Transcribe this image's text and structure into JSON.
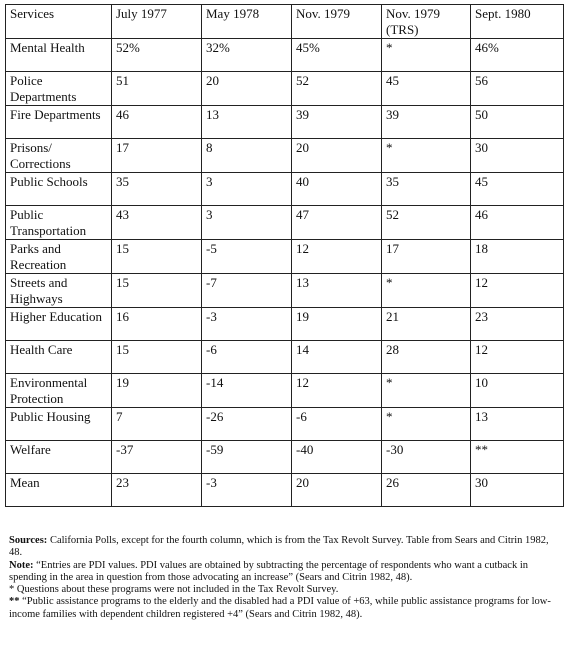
{
  "table": {
    "header": [
      "Services",
      "July 1977",
      "May 1978",
      "Nov. 1979",
      "Nov. 1979 (TRS)",
      "Sept. 1980"
    ],
    "rows": [
      [
        "Mental Health",
        "52%",
        "32%",
        "45%",
        "*",
        "46%"
      ],
      [
        "Police Departments",
        "51",
        "20",
        "52",
        "45",
        "56"
      ],
      [
        "Fire Departments",
        "46",
        "13",
        "39",
        "39",
        "50"
      ],
      [
        "Prisons/ Corrections",
        "17",
        "8",
        "20",
        "*",
        "30"
      ],
      [
        "Public Schools",
        "35",
        "3",
        "40",
        "35",
        "45"
      ],
      [
        "Public Transportation",
        "43",
        "3",
        "47",
        "52",
        "46"
      ],
      [
        "Parks and Recreation",
        "15",
        "-5",
        "12",
        "17",
        "18"
      ],
      [
        "Streets and Highways",
        "15",
        "-7",
        "13",
        "*",
        "12"
      ],
      [
        "Higher Education",
        "16",
        "-3",
        "19",
        "21",
        "23"
      ],
      [
        "Health Care",
        "15",
        "-6",
        "14",
        "28",
        "12"
      ],
      [
        "Environmental Protection",
        "19",
        "-14",
        "12",
        "*",
        "10"
      ],
      [
        "Public Housing",
        "7",
        "-26",
        "-6",
        "*",
        "13"
      ],
      [
        "Welfare",
        "-37",
        "-59",
        "-40",
        "-30",
        "**"
      ],
      [
        "Mean",
        "23",
        "-3",
        "20",
        "26",
        "30"
      ]
    ]
  },
  "notes": [
    {
      "label": "Sources:",
      "text": "California Polls, except for the fourth column, which is from the Tax Revolt Survey. Table from Sears and Citrin 1982, 48."
    },
    {
      "label": "Note:",
      "text": "“Entries are PDI values. PDI values are obtained by subtracting the percentage of respondents who want a cutback in spending in the area in question from those advocating an increase” (Sears and Citrin 1982, 48)."
    },
    {
      "label": "*",
      "text": "Questions about these programs were not included in the Tax Revolt Survey."
    },
    {
      "label": "**",
      "text": "“Public assistance programs to the elderly and the disabled had a PDI value of +63, while public assistance programs for low-income families with dependent children registered +4” (Sears and Citrin 1982, 48)."
    }
  ]
}
